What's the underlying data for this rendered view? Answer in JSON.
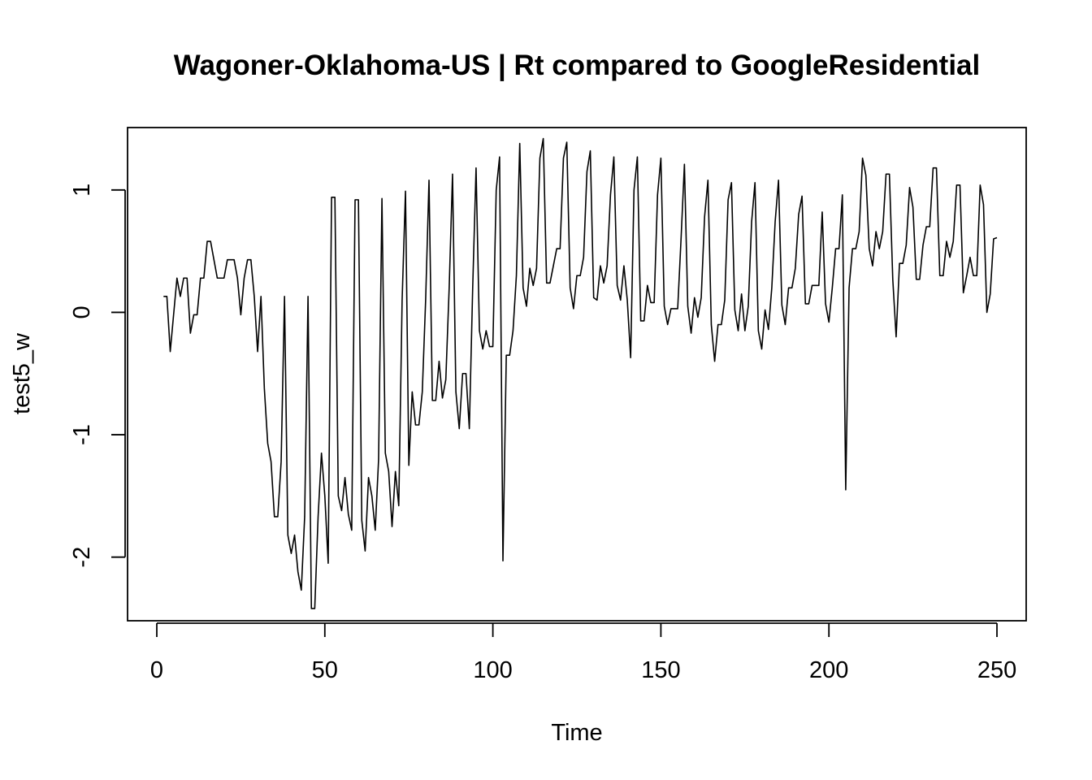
{
  "chart_data": {
    "type": "line",
    "title": "Wagoner-Oklahoma-US | Rt compared to GoogleResidential",
    "xlabel": "Time",
    "ylabel": "test5_w",
    "xlim": [
      -8.7,
      258.7
    ],
    "ylim": [
      -2.52,
      1.51
    ],
    "x_ticks": [
      0,
      50,
      100,
      150,
      200,
      250
    ],
    "y_ticks": [
      -2,
      -1,
      0,
      1
    ],
    "grid": false,
    "legend": "none",
    "line_color": "#000000",
    "series": [
      {
        "x_start": 2,
        "values": [
          0.13,
          0.13,
          -0.32,
          -0.02,
          0.28,
          0.13,
          0.28,
          0.28,
          -0.17,
          -0.02,
          -0.02,
          0.28,
          0.28,
          0.58,
          0.58,
          0.43,
          0.28,
          0.28,
          0.28,
          0.43,
          0.43,
          0.43,
          0.28,
          -0.02,
          0.28,
          0.43,
          0.43,
          0.13,
          -0.32,
          0.13,
          -0.62,
          -1.07,
          -1.22,
          -1.67,
          -1.67,
          -1.22,
          0.13,
          -1.82,
          -1.97,
          -1.82,
          -2.12,
          -2.27,
          -1.67,
          0.13,
          -2.42,
          -2.42,
          -1.67,
          -1.15,
          -1.5,
          -2.05,
          0.94,
          0.94,
          -1.5,
          -1.62,
          -1.35,
          -1.65,
          -1.78,
          0.92,
          0.92,
          -1.7,
          -1.95,
          -1.35,
          -1.5,
          -1.78,
          -1.2,
          0.93,
          -1.15,
          -1.3,
          -1.75,
          -1.3,
          -1.58,
          0.1,
          0.99,
          -1.25,
          -0.65,
          -0.92,
          -0.92,
          -0.65,
          0.1,
          1.08,
          -0.72,
          -0.72,
          -0.4,
          -0.7,
          -0.55,
          0.2,
          1.13,
          -0.65,
          -0.95,
          -0.5,
          -0.5,
          -0.95,
          0.2,
          1.18,
          -0.15,
          -0.3,
          -0.15,
          -0.28,
          -0.28,
          1.0,
          1.27,
          -2.03,
          -0.35,
          -0.35,
          -0.15,
          0.3,
          1.38,
          0.2,
          0.05,
          0.36,
          0.22,
          0.36,
          1.26,
          1.42,
          0.24,
          0.24,
          0.38,
          0.52,
          0.52,
          1.26,
          1.39,
          0.2,
          0.03,
          0.3,
          0.3,
          0.45,
          1.15,
          1.32,
          0.12,
          0.1,
          0.38,
          0.24,
          0.38,
          0.96,
          1.27,
          0.22,
          0.1,
          0.38,
          0.1,
          -0.37,
          1.0,
          1.27,
          -0.07,
          -0.07,
          0.22,
          0.08,
          0.08,
          0.96,
          1.26,
          0.05,
          -0.1,
          0.03,
          0.03,
          0.03,
          0.6,
          1.21,
          0.05,
          -0.17,
          0.12,
          -0.04,
          0.12,
          0.78,
          1.08,
          -0.1,
          -0.4,
          -0.1,
          -0.1,
          0.1,
          0.92,
          1.06,
          0.02,
          -0.15,
          0.15,
          -0.15,
          0.05,
          0.74,
          1.06,
          -0.15,
          -0.3,
          0.02,
          -0.14,
          0.2,
          0.74,
          1.08,
          0.06,
          -0.1,
          0.2,
          0.2,
          0.36,
          0.8,
          0.95,
          0.07,
          0.07,
          0.22,
          0.22,
          0.22,
          0.82,
          0.07,
          -0.08,
          0.2,
          0.52,
          0.52,
          0.96,
          -1.45,
          0.2,
          0.52,
          0.52,
          0.66,
          1.26,
          1.12,
          0.52,
          0.38,
          0.66,
          0.52,
          0.66,
          1.13,
          1.13,
          0.27,
          -0.2,
          0.4,
          0.4,
          0.55,
          1.02,
          0.86,
          0.27,
          0.27,
          0.55,
          0.7,
          0.7,
          1.18,
          1.18,
          0.3,
          0.3,
          0.58,
          0.45,
          0.58,
          1.04,
          1.04,
          0.16,
          0.3,
          0.45,
          0.3,
          0.3,
          1.04,
          0.88,
          0.0,
          0.15,
          0.6,
          0.61
        ]
      }
    ]
  }
}
